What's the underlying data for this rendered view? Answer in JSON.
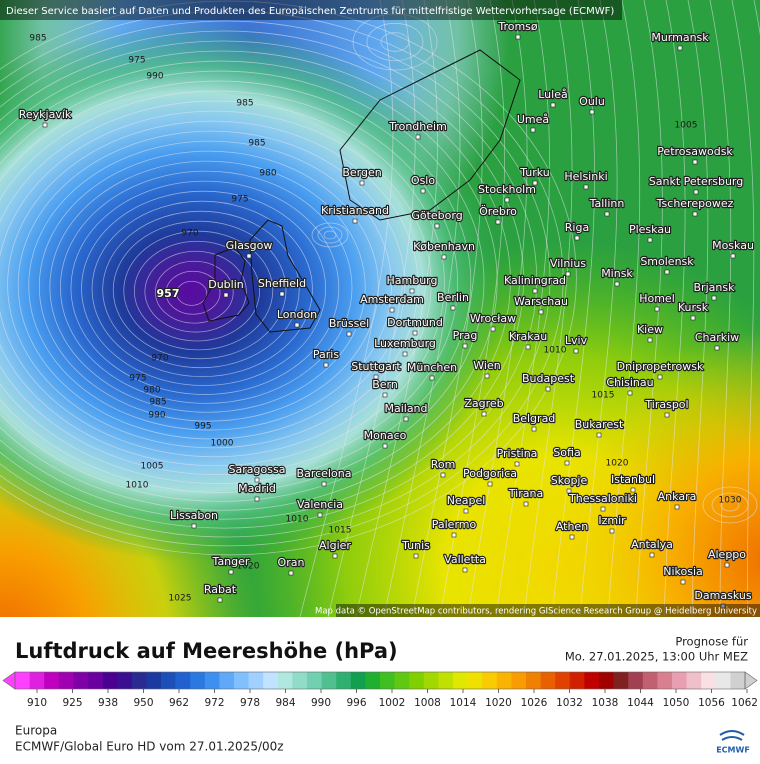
{
  "map": {
    "attribution_top": "Dieser Service basiert auf Daten und Produkten des Europäischen Zentrums für mittelfristige Wettervorhersage (ECMWF)",
    "attribution_bottom": "Map data © OpenStreetMap contributors, rendering GIScience Research Group @ Heidelberg University",
    "cities": [
      "Reykjavík",
      "Tromsø",
      "Murmansk",
      "Luleå",
      "Oulu",
      "Umeå",
      "Trondheim",
      "Petrosawodsk",
      "Turku",
      "Helsinki",
      "Sankt Petersburg",
      "Bergen",
      "Oslo",
      "Stockholm",
      "Tallinn",
      "Tscherepowez",
      "Kristiansand",
      "Göteborg",
      "Örebro",
      "Riga",
      "Pleskau",
      "Glasgow",
      "København",
      "Moskau",
      "Vilnius",
      "Minsk",
      "Smolensk",
      "Hamburg",
      "Kaliningrad",
      "Dublin",
      "Sheffield",
      "Berlin",
      "Amsterdam",
      "Warschau",
      "Brjansk",
      "Homel",
      "London",
      "Dortmund",
      "Brüssel",
      "Wrocław",
      "Kursk",
      "Luxemburg",
      "Prag",
      "Krakau",
      "Lviv",
      "Kiew",
      "Charkiw",
      "Paris",
      "Stuttgart",
      "München",
      "Wien",
      "Dnipropetrowsk",
      "Budapest",
      "Chisinau",
      "Bern",
      "Mailand",
      "Zagreb",
      "Tiraspol",
      "Belgrad",
      "Bukarest",
      "Monaco",
      "Pristina",
      "Sofia",
      "Rom",
      "Podgorica",
      "Skopje",
      "Istanbul",
      "Saragossa",
      "Barcelona",
      "Madrid",
      "Tirana",
      "Thessaloniki",
      "Ankara",
      "Neapel",
      "Valencia",
      "Lissabon",
      "Palermo",
      "Izmir",
      "Athen",
      "Algier",
      "Tunis",
      "Antalya",
      "Aleppo",
      "Tanger",
      "Oran",
      "Valletta",
      "Nikosia",
      "Rabat",
      "Damaskus"
    ],
    "isobar_labels": [
      985,
      975,
      990,
      985,
      985,
      980,
      975,
      970,
      957,
      970,
      975,
      980,
      985,
      990,
      995,
      1000,
      1005,
      1010,
      1015,
      1020,
      1025,
      1005,
      1010,
      1015,
      1020,
      1030,
      1010
    ]
  },
  "legend": {
    "title": "Luftdruck auf Meereshöhe (hPa)",
    "forecast_label": "Prognose für",
    "forecast_time": "Mo. 27.01.2025, 13:00 Uhr MEZ",
    "ticks": [
      910,
      925,
      938,
      950,
      962,
      972,
      978,
      984,
      990,
      996,
      1002,
      1008,
      1014,
      1020,
      1026,
      1032,
      1038,
      1044,
      1050,
      1056,
      1062
    ],
    "colors": [
      "#ff40ff",
      "#e020e0",
      "#c000c0",
      "#a000b0",
      "#8000a8",
      "#6a00a0",
      "#4a0090",
      "#3a1090",
      "#2a2a90",
      "#1a3aa0",
      "#1c4fb8",
      "#2060d0",
      "#2a78e0",
      "#3d90f0",
      "#60a8f8",
      "#80c0ff",
      "#a0d0ff",
      "#c0e4ff",
      "#b0e8e0",
      "#90dcc8",
      "#70d0b0",
      "#50c090",
      "#30b070",
      "#10a050",
      "#20b030",
      "#40c020",
      "#60c810",
      "#80d000",
      "#a0d800",
      "#c0e000",
      "#e0e800",
      "#f0e000",
      "#f8cc00",
      "#f8b400",
      "#f89c00",
      "#f08000",
      "#e86000",
      "#e04000",
      "#d02000",
      "#c00000",
      "#a00000",
      "#802020",
      "#a04050",
      "#c06070",
      "#d88090",
      "#e8a0b0",
      "#f0c0c8",
      "#f8e0e4",
      "#e8e8e8",
      "#d0d0d0"
    ]
  },
  "footer": {
    "region": "Europa",
    "model": "ECMWF/Global Euro HD vom  27.01.2025/00z",
    "logo": "ECMWF"
  }
}
